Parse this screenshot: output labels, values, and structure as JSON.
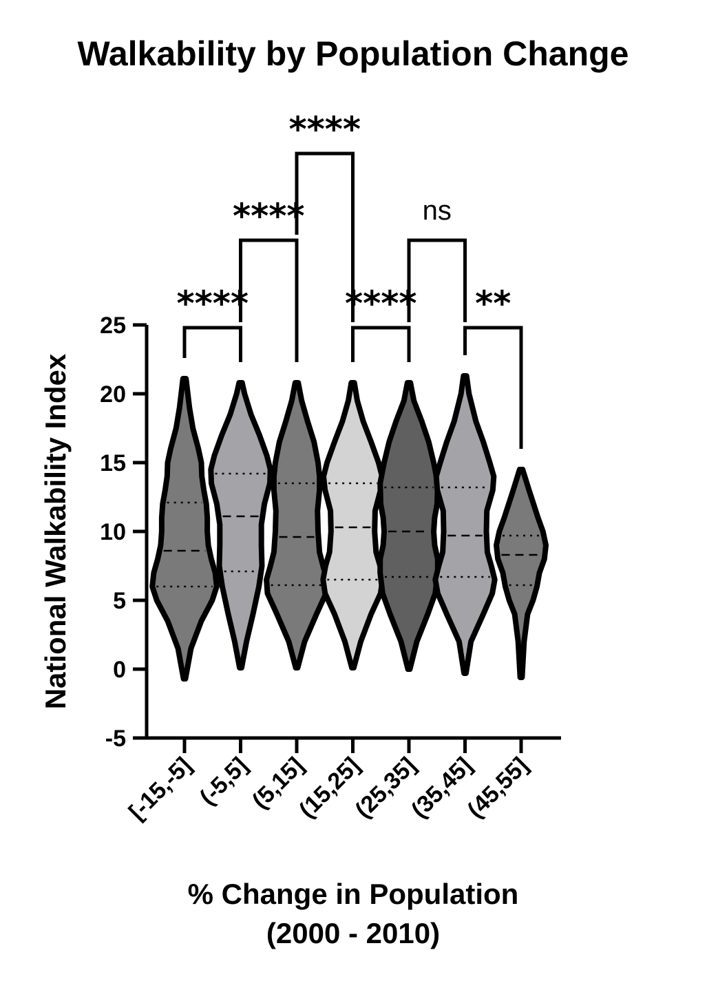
{
  "chart_data": {
    "type": "violin",
    "title": "Walkability by Population  Change",
    "ylabel": "National Walkability  Index",
    "xlabel_line1": "% Change in Population",
    "xlabel_line2": "(2000 - 2010)",
    "ylim": [
      -5,
      25
    ],
    "yticks": [
      "-5",
      "0",
      "5",
      "10",
      "15",
      "20",
      "25"
    ],
    "categories": [
      "[-15,-5]",
      "(-5,5]",
      "(5,15]",
      "(15,25]",
      "(25,35]",
      "(35,45]",
      "(45,55]"
    ],
    "violins": [
      {
        "category": "[-15,-5]",
        "fill": "#7a7a7a",
        "min": -0.7,
        "max": 21.1,
        "q1": 6.0,
        "median": 8.6,
        "q3": 12.1,
        "profile": [
          [
            -0.7,
            0.2
          ],
          [
            1.5,
            1.3
          ],
          [
            3.5,
            3.4
          ],
          [
            5.0,
            5.6
          ],
          [
            6.0,
            6.5
          ],
          [
            7.0,
            6.2
          ],
          [
            8.0,
            5.4
          ],
          [
            9.0,
            4.8
          ],
          [
            10.0,
            4.6
          ],
          [
            11.0,
            4.6
          ],
          [
            12.0,
            4.4
          ],
          [
            13.0,
            3.9
          ],
          [
            14.0,
            3.5
          ],
          [
            15.0,
            3.4
          ],
          [
            16.0,
            2.8
          ],
          [
            17.5,
            1.7
          ],
          [
            19.0,
            1.0
          ],
          [
            21.1,
            0.3
          ]
        ]
      },
      {
        "category": "(-5,5]",
        "fill": "#a3a3a8",
        "min": 0.1,
        "max": 20.8,
        "q1": 7.1,
        "median": 11.1,
        "q3": 14.2,
        "profile": [
          [
            0.1,
            0.2
          ],
          [
            2.0,
            1.2
          ],
          [
            4.0,
            2.5
          ],
          [
            6.0,
            3.7
          ],
          [
            7.5,
            4.3
          ],
          [
            9.0,
            4.2
          ],
          [
            10.5,
            4.2
          ],
          [
            12.0,
            4.8
          ],
          [
            13.5,
            5.9
          ],
          [
            14.5,
            6.0
          ],
          [
            15.5,
            5.3
          ],
          [
            17.0,
            3.8
          ],
          [
            18.5,
            2.1
          ],
          [
            20.0,
            0.8
          ],
          [
            20.8,
            0.3
          ]
        ]
      },
      {
        "category": "(5,15]",
        "fill": "#7a7a7a",
        "min": 0.1,
        "max": 20.8,
        "q1": 6.1,
        "median": 9.6,
        "q3": 13.5,
        "profile": [
          [
            0.1,
            0.2
          ],
          [
            2.0,
            1.6
          ],
          [
            4.0,
            4.0
          ],
          [
            5.5,
            5.9
          ],
          [
            6.5,
            6.1
          ],
          [
            7.5,
            5.3
          ],
          [
            8.5,
            4.6
          ],
          [
            10.0,
            4.3
          ],
          [
            11.5,
            4.2
          ],
          [
            13.0,
            4.6
          ],
          [
            14.0,
            4.6
          ],
          [
            15.0,
            4.3
          ],
          [
            16.5,
            3.5
          ],
          [
            18.0,
            2.2
          ],
          [
            19.5,
            1.0
          ],
          [
            20.8,
            0.3
          ]
        ]
      },
      {
        "category": "(15,25]",
        "fill": "#d3d3d3",
        "min": 0.1,
        "max": 20.8,
        "q1": 6.5,
        "median": 10.3,
        "q3": 13.5,
        "profile": [
          [
            0.1,
            0.2
          ],
          [
            2.0,
            1.6
          ],
          [
            4.0,
            3.7
          ],
          [
            5.5,
            5.6
          ],
          [
            6.5,
            6.0
          ],
          [
            7.5,
            5.5
          ],
          [
            8.5,
            4.7
          ],
          [
            10.0,
            4.4
          ],
          [
            11.5,
            4.5
          ],
          [
            13.0,
            5.6
          ],
          [
            14.0,
            5.9
          ],
          [
            15.0,
            5.2
          ],
          [
            16.5,
            3.7
          ],
          [
            18.0,
            2.1
          ],
          [
            19.5,
            0.9
          ],
          [
            20.8,
            0.3
          ]
        ]
      },
      {
        "category": "(25,35]",
        "fill": "#606060",
        "min": 0.0,
        "max": 20.8,
        "q1": 6.7,
        "median": 10.0,
        "q3": 13.2,
        "profile": [
          [
            0.0,
            0.2
          ],
          [
            2.0,
            1.6
          ],
          [
            4.0,
            3.8
          ],
          [
            5.5,
            5.3
          ],
          [
            7.0,
            5.8
          ],
          [
            8.0,
            5.8
          ],
          [
            9.0,
            5.2
          ],
          [
            10.0,
            5.0
          ],
          [
            11.0,
            5.2
          ],
          [
            12.0,
            5.7
          ],
          [
            13.5,
            5.8
          ],
          [
            15.0,
            5.0
          ],
          [
            16.5,
            4.0
          ],
          [
            18.0,
            2.6
          ],
          [
            19.5,
            1.0
          ],
          [
            20.8,
            0.3
          ]
        ]
      },
      {
        "category": "(35,45]",
        "fill": "#a3a3a8",
        "min": -0.3,
        "max": 21.3,
        "q1": 6.7,
        "median": 9.7,
        "q3": 13.2,
        "profile": [
          [
            -0.3,
            0.2
          ],
          [
            2.0,
            1.2
          ],
          [
            4.0,
            3.7
          ],
          [
            5.5,
            5.5
          ],
          [
            6.5,
            6.0
          ],
          [
            7.5,
            5.3
          ],
          [
            8.5,
            4.5
          ],
          [
            10.0,
            4.3
          ],
          [
            11.5,
            4.4
          ],
          [
            13.0,
            5.6
          ],
          [
            14.0,
            5.8
          ],
          [
            15.0,
            5.0
          ],
          [
            16.5,
            3.7
          ],
          [
            18.0,
            2.2
          ],
          [
            20.0,
            0.8
          ],
          [
            21.3,
            0.3
          ]
        ]
      },
      {
        "category": "(45,55]",
        "fill": "#7a7a7a",
        "min": -0.6,
        "max": 14.5,
        "q1": 6.1,
        "median": 8.3,
        "q3": 9.7,
        "profile": [
          [
            -0.6,
            0.2
          ],
          [
            2.0,
            0.6
          ],
          [
            4.0,
            1.3
          ],
          [
            5.0,
            2.4
          ],
          [
            6.0,
            3.2
          ],
          [
            7.0,
            3.7
          ],
          [
            8.0,
            4.7
          ],
          [
            9.0,
            5.0
          ],
          [
            10.0,
            4.4
          ],
          [
            11.0,
            3.4
          ],
          [
            12.0,
            2.5
          ],
          [
            13.0,
            1.6
          ],
          [
            14.5,
            0.3
          ]
        ]
      }
    ],
    "brackets": [
      {
        "from": 0,
        "to": 1,
        "label": "****",
        "level": 1
      },
      {
        "from": 1,
        "to": 2,
        "label": "****",
        "level": 2
      },
      {
        "from": 2,
        "to": 3,
        "label": "****",
        "level": 3
      },
      {
        "from": 3,
        "to": 4,
        "label": "****",
        "level": 1
      },
      {
        "from": 4,
        "to": 5,
        "label": "ns",
        "level": 2
      },
      {
        "from": 5,
        "to": 6,
        "label": "**",
        "level": 1
      }
    ]
  }
}
